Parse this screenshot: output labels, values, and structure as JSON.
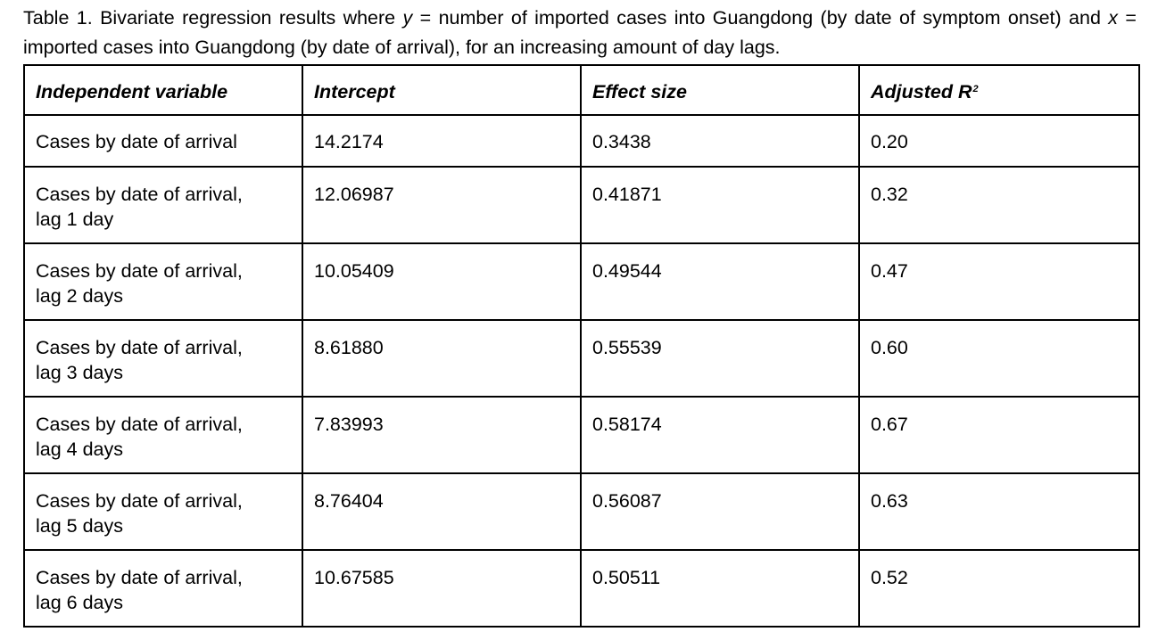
{
  "caption": {
    "part1": "Table 1. Bivariate regression results where ",
    "y_var": "y",
    "part2": " = number of imported cases into Guangdong (by date of symptom onset) and ",
    "x_var": "x",
    "part3": " = imported cases into Guangdong (by date of arrival), for an increasing amount of day lags."
  },
  "table": {
    "headers": {
      "independent_variable": "Independent variable",
      "intercept": "Intercept",
      "effect_size": "Effect size",
      "adjusted_r2_base": "Adjusted R",
      "adjusted_r2_sup": "2"
    },
    "rows": [
      {
        "variable_line1": "Cases by date of arrival",
        "variable_line2": "",
        "intercept": "14.2174",
        "effect_size": "0.3438",
        "adjusted_r2": "0.20"
      },
      {
        "variable_line1": "Cases by date of arrival,",
        "variable_line2": "lag 1 day",
        "intercept": "12.06987",
        "effect_size": "0.41871",
        "adjusted_r2": "0.32"
      },
      {
        "variable_line1": "Cases by date of arrival,",
        "variable_line2": "lag 2 days",
        "intercept": "10.05409",
        "effect_size": "0.49544",
        "adjusted_r2": "0.47"
      },
      {
        "variable_line1": "Cases by date of arrival,",
        "variable_line2": "lag 3 days",
        "intercept": "8.61880",
        "effect_size": "0.55539",
        "adjusted_r2": "0.60"
      },
      {
        "variable_line1": "Cases by date of arrival,",
        "variable_line2": "lag 4 days",
        "intercept": "7.83993",
        "effect_size": "0.58174",
        "adjusted_r2": "0.67"
      },
      {
        "variable_line1": "Cases by date of arrival,",
        "variable_line2": "lag 5 days",
        "intercept": "8.76404",
        "effect_size": "0.56087",
        "adjusted_r2": "0.63"
      },
      {
        "variable_line1": "Cases by date of arrival,",
        "variable_line2": "lag 6 days",
        "intercept": "10.67585",
        "effect_size": "0.50511",
        "adjusted_r2": "0.52"
      }
    ]
  }
}
